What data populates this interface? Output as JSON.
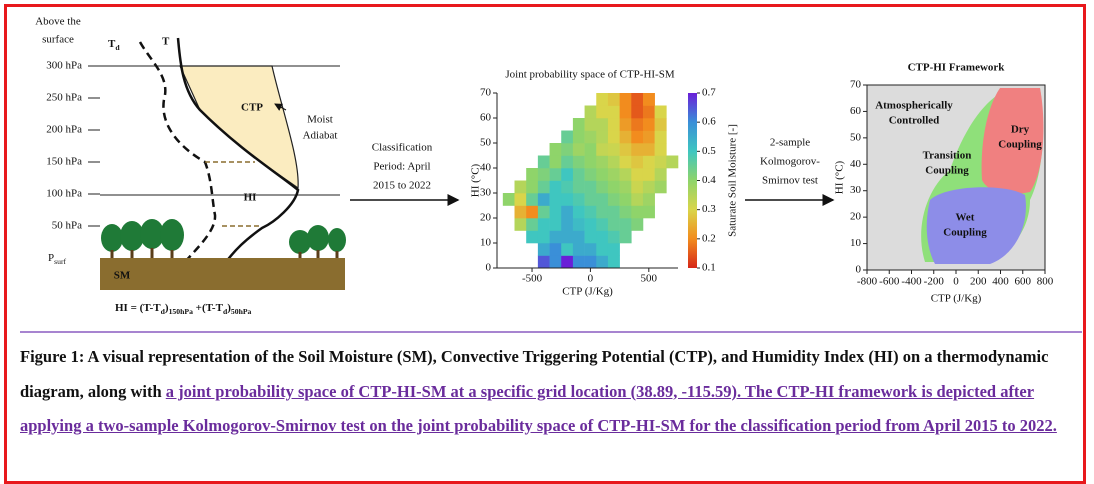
{
  "thermo": {
    "above": [
      "Above the",
      "surface"
    ],
    "td": [
      {
        "text": "T"
      },
      {
        "text": "d",
        "sub": true
      }
    ],
    "t": "T",
    "pressures": [
      "300 hPa",
      "250 hPa",
      "200 hPa",
      "150 hPa",
      "100 hPa",
      "50 hPa"
    ],
    "psurf": [
      {
        "text": "P"
      },
      {
        "text": "surf",
        "sub": true
      }
    ],
    "ctp": "CTP",
    "moist": [
      "Moist",
      "Adiabat"
    ],
    "hi": "HI",
    "sm": "SM",
    "formula": [
      {
        "text": "HI = (T-T"
      },
      {
        "text": "d",
        "sub": true
      },
      {
        "text": ")"
      },
      {
        "text": "150hPa",
        "sub": true
      },
      {
        "text": " +(T-T"
      },
      {
        "text": "d",
        "sub": true
      },
      {
        "text": ")"
      },
      {
        "text": "50hPa",
        "sub": true
      }
    ]
  },
  "arrow1": [
    "Classification",
    "Period: April",
    "2015 to 2022"
  ],
  "arrow2": [
    "2-sample",
    "Kolmogorov-",
    "Smirnov test"
  ],
  "heatmap": {
    "type": "heatmap",
    "title": "Joint probability space of CTP-HI-SM",
    "x_label": "CTP (J/Kg)",
    "y_label": "HI (°C)",
    "colorbar_label": "Saturate Soil Moisture [-]",
    "xlim": [
      -800,
      750
    ],
    "xticks": [
      -500,
      0,
      500
    ],
    "ylim": [
      0,
      70
    ],
    "yticks": [
      0,
      10,
      20,
      30,
      40,
      50,
      60,
      70
    ],
    "clim": [
      0.1,
      0.7
    ],
    "cticks": [
      0.1,
      0.2,
      0.3,
      0.4,
      0.5,
      0.6,
      0.7
    ],
    "colormap": [
      "#d62718",
      "#f28c1e",
      "#d9d54a",
      "#8fd46a",
      "#3fc6c0",
      "#3a8fd8",
      "#6a1fd8"
    ],
    "x_bins": [
      -750,
      -650,
      -550,
      -450,
      -350,
      -250,
      -150,
      -50,
      50,
      150,
      250,
      350,
      450,
      550,
      650,
      750
    ],
    "y_bins": [
      0,
      5,
      10,
      15,
      20,
      25,
      30,
      35,
      40,
      45,
      50,
      55,
      60,
      65,
      70
    ],
    "values": [
      [
        null,
        null,
        null,
        0.65,
        0.6,
        0.7,
        0.6,
        0.6,
        0.55,
        0.5,
        null,
        null,
        null,
        null,
        null
      ],
      [
        null,
        null,
        null,
        0.55,
        0.6,
        0.5,
        0.55,
        0.55,
        0.5,
        0.5,
        null,
        null,
        null,
        null,
        null
      ],
      [
        null,
        null,
        0.5,
        0.5,
        0.55,
        0.55,
        0.55,
        0.5,
        0.5,
        0.48,
        0.45,
        null,
        null,
        null,
        null
      ],
      [
        null,
        0.35,
        0.45,
        0.5,
        0.5,
        0.55,
        0.52,
        0.5,
        0.48,
        0.45,
        0.45,
        0.42,
        null,
        null,
        null
      ],
      [
        null,
        0.25,
        0.2,
        0.45,
        0.5,
        0.55,
        0.5,
        0.48,
        0.45,
        0.45,
        0.42,
        0.4,
        0.4,
        null,
        null
      ],
      [
        0.4,
        0.3,
        0.45,
        0.55,
        0.5,
        0.5,
        0.48,
        0.45,
        0.45,
        0.42,
        0.4,
        0.35,
        0.38,
        null,
        null
      ],
      [
        null,
        0.35,
        0.4,
        0.45,
        0.5,
        0.48,
        0.45,
        0.45,
        0.42,
        0.4,
        0.38,
        0.32,
        0.35,
        0.38,
        null
      ],
      [
        null,
        null,
        0.4,
        0.42,
        0.45,
        0.5,
        0.45,
        0.42,
        0.4,
        0.38,
        0.35,
        0.3,
        0.3,
        0.35,
        null
      ],
      [
        null,
        null,
        null,
        0.45,
        0.4,
        0.45,
        0.42,
        0.4,
        0.38,
        0.35,
        0.3,
        0.28,
        0.3,
        0.32,
        0.35
      ],
      [
        null,
        null,
        null,
        null,
        0.4,
        0.42,
        0.38,
        0.4,
        0.33,
        0.32,
        0.28,
        0.25,
        0.25,
        0.3,
        null
      ],
      [
        null,
        null,
        null,
        null,
        null,
        0.45,
        0.4,
        0.38,
        0.35,
        0.3,
        0.25,
        0.2,
        0.22,
        0.3,
        null
      ],
      [
        null,
        null,
        null,
        null,
        null,
        null,
        0.4,
        0.35,
        0.35,
        0.3,
        0.22,
        0.18,
        0.2,
        0.28,
        null
      ],
      [
        null,
        null,
        null,
        null,
        null,
        null,
        null,
        0.35,
        0.3,
        0.3,
        0.2,
        0.15,
        0.18,
        0.3,
        null
      ],
      [
        null,
        null,
        null,
        null,
        null,
        null,
        null,
        null,
        0.3,
        0.28,
        0.2,
        0.15,
        0.2,
        null,
        null
      ]
    ]
  },
  "framework": {
    "type": "region",
    "title": "CTP-HI Framework",
    "x_label": "CTP (J/Kg)",
    "y_label": "HI (°C)",
    "xlim": [
      -800,
      800
    ],
    "xticks": [
      -800,
      -600,
      -400,
      -200,
      0,
      200,
      400,
      600,
      800
    ],
    "ylim": [
      0,
      70
    ],
    "yticks": [
      0,
      10,
      20,
      30,
      40,
      50,
      60,
      70
    ],
    "regions": [
      [
        "Atmospherically",
        "Controlled"
      ],
      [
        "Dry",
        "Coupling"
      ],
      [
        "Transition",
        "Coupling"
      ],
      [
        "Wet",
        "Coupling"
      ]
    ]
  },
  "caption": {
    "text": "Figure 1: A visual representation of the Soil Moisture (SM), Convective Triggering Potential (CTP), and Humidity Index (HI) on a thermodynamic diagram, along with ",
    "link": "a joint probability space of CTP-HI-SM at a specific grid location (38.89, -115.59). The CTP-HI framework is depicted after applying a two-sample Kolmogorov-Smirnov test on the joint probability space of CTP-HI-SM for the classification period from April 2015 to 2022."
  }
}
